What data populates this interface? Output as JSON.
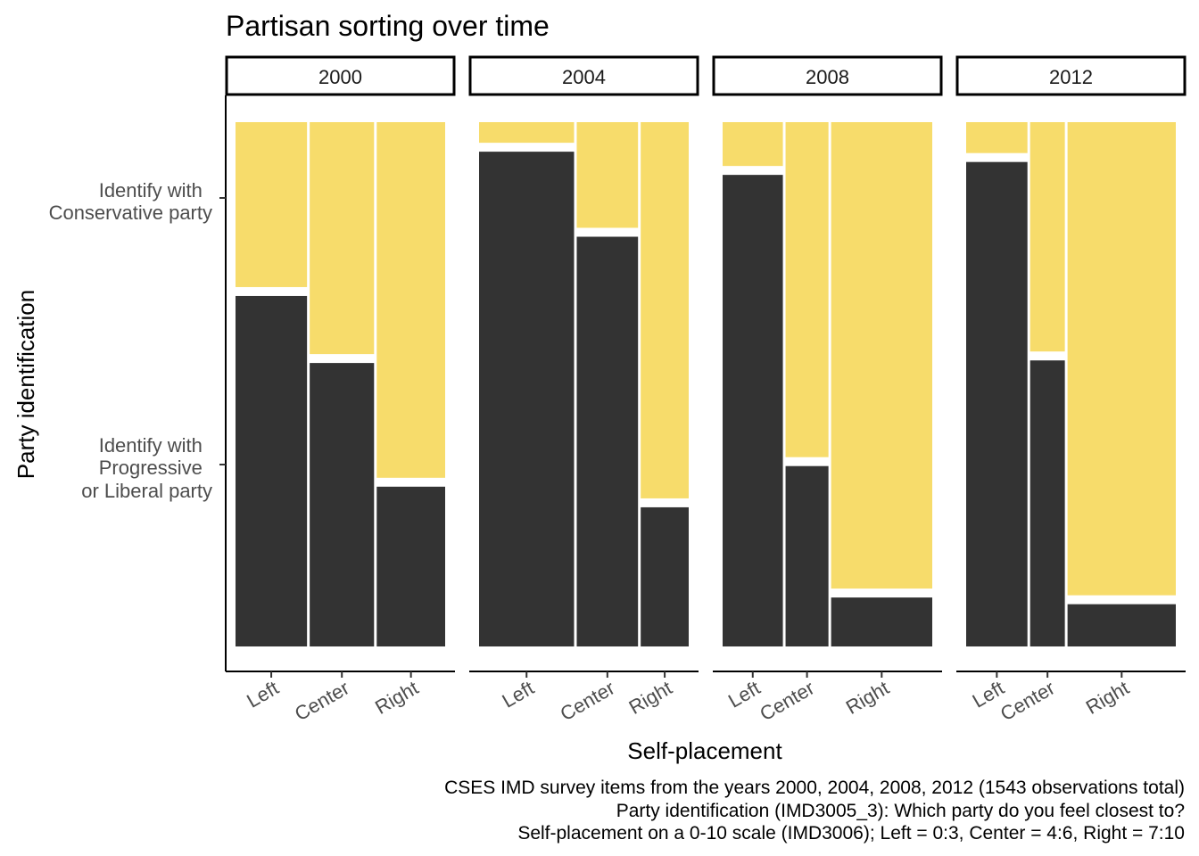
{
  "chart_data": {
    "type": "mosaic",
    "title": "Partisan sorting over time",
    "xlabel": "Self-placement",
    "ylabel": "Party identification",
    "y_categories": [
      [
        "Identify with",
        "Progressive",
        "or Liberal party"
      ],
      [
        "Identify with",
        "Conservative party"
      ]
    ],
    "series": [
      {
        "key": "progressive",
        "color": "#333333"
      },
      {
        "key": "conservative",
        "color": "#f7dc6b"
      }
    ],
    "panels": [
      {
        "label": "2000",
        "categories": [
          "Left",
          "Center",
          "Right"
        ],
        "widths": [
          0.35,
          0.315,
          0.335
        ],
        "progressive_share": [
          0.68,
          0.55,
          0.31
        ]
      },
      {
        "label": "2004",
        "categories": [
          "Left",
          "Center",
          "Right"
        ],
        "widths": [
          0.465,
          0.3,
          0.235
        ],
        "progressive_share": [
          0.96,
          0.795,
          0.27
        ]
      },
      {
        "label": "2008",
        "categories": [
          "Left",
          "Center",
          "Right"
        ],
        "widths": [
          0.295,
          0.21,
          0.495
        ],
        "progressive_share": [
          0.915,
          0.35,
          0.095
        ]
      },
      {
        "label": "2012",
        "categories": [
          "Left",
          "Center",
          "Right"
        ],
        "widths": [
          0.3,
          0.17,
          0.53
        ],
        "progressive_share": [
          0.94,
          0.555,
          0.082
        ]
      }
    ]
  },
  "caption": [
    "CSES IMD survey items from the years 2000, 2004, 2008, 2012 (1543 observations total)",
    "Party identification (IMD3005_3): Which party do you feel closest to?",
    "Self-placement on a 0-10 scale (IMD3006); Left = 0:3, Center = 4:6, Right = 7:10"
  ]
}
